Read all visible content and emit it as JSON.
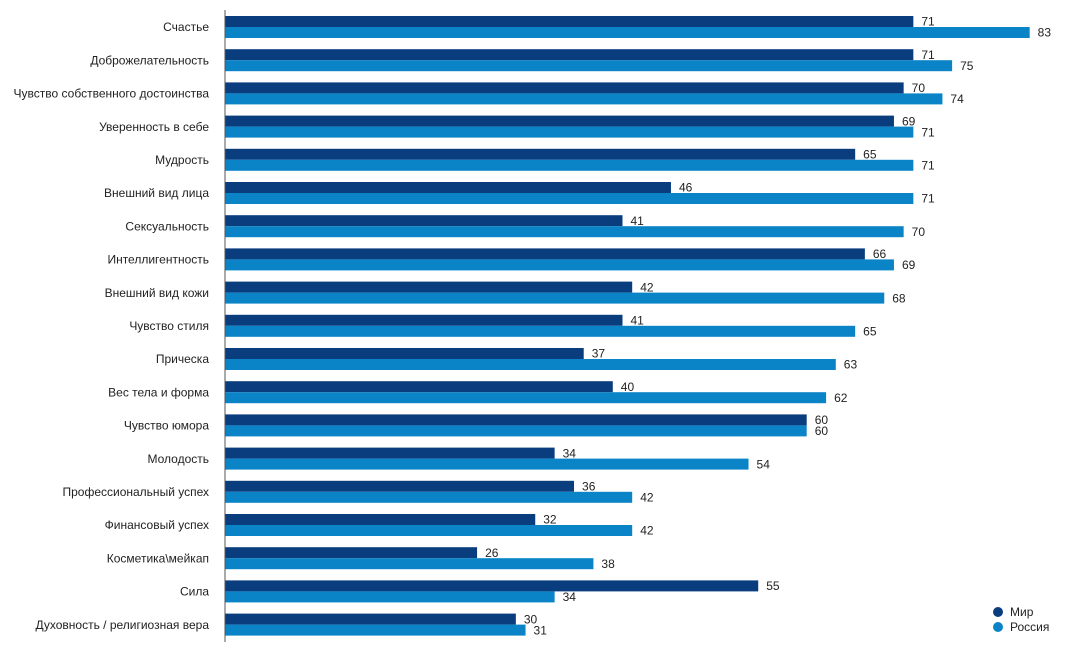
{
  "chart_data": {
    "type": "bar",
    "orientation": "horizontal",
    "title": "",
    "xlabel": "",
    "ylabel": "",
    "xlim": [
      0,
      85
    ],
    "grid": false,
    "legend_position": "bottom-right",
    "categories": [
      "Счастье",
      "Доброжелательность",
      "Чувство собственного достоинства",
      "Уверенность в себе",
      "Мудрость",
      "Внешний вид лица",
      "Сексуальность",
      "Интеллигентность",
      "Внешний вид кожи",
      "Чувство стиля",
      "Прическа",
      "Вес тела и форма",
      "Чувство юмора",
      "Молодость",
      "Профессиональный успех",
      "Финансовый успех",
      "Косметика\\мейкап",
      "Сила",
      "Духовность / религиозная вера"
    ],
    "series": [
      {
        "name": "Мир",
        "color": "#0a3d7e",
        "values": [
          71,
          71,
          70,
          69,
          65,
          46,
          41,
          66,
          42,
          41,
          37,
          40,
          60,
          34,
          36,
          32,
          26,
          55,
          30
        ]
      },
      {
        "name": "Россия",
        "color": "#0a84c6",
        "values": [
          83,
          75,
          74,
          71,
          71,
          71,
          70,
          69,
          68,
          65,
          63,
          62,
          60,
          54,
          42,
          42,
          38,
          34,
          31
        ]
      }
    ]
  }
}
